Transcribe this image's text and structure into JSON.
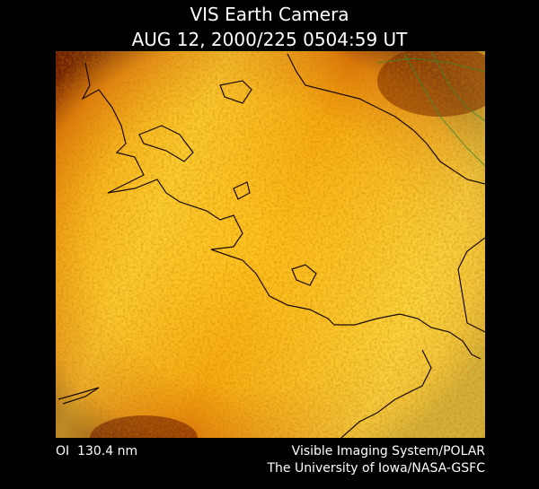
{
  "header": {
    "title": "VIS Earth Camera",
    "timestamp": "AUG 12, 2000/225 0504:59 UT"
  },
  "footer": {
    "wavelength": "OI  130.4 nm",
    "instrument": "Visible Imaging System/POLAR",
    "institution": "The University of Iowa/NASA-GSFC"
  }
}
